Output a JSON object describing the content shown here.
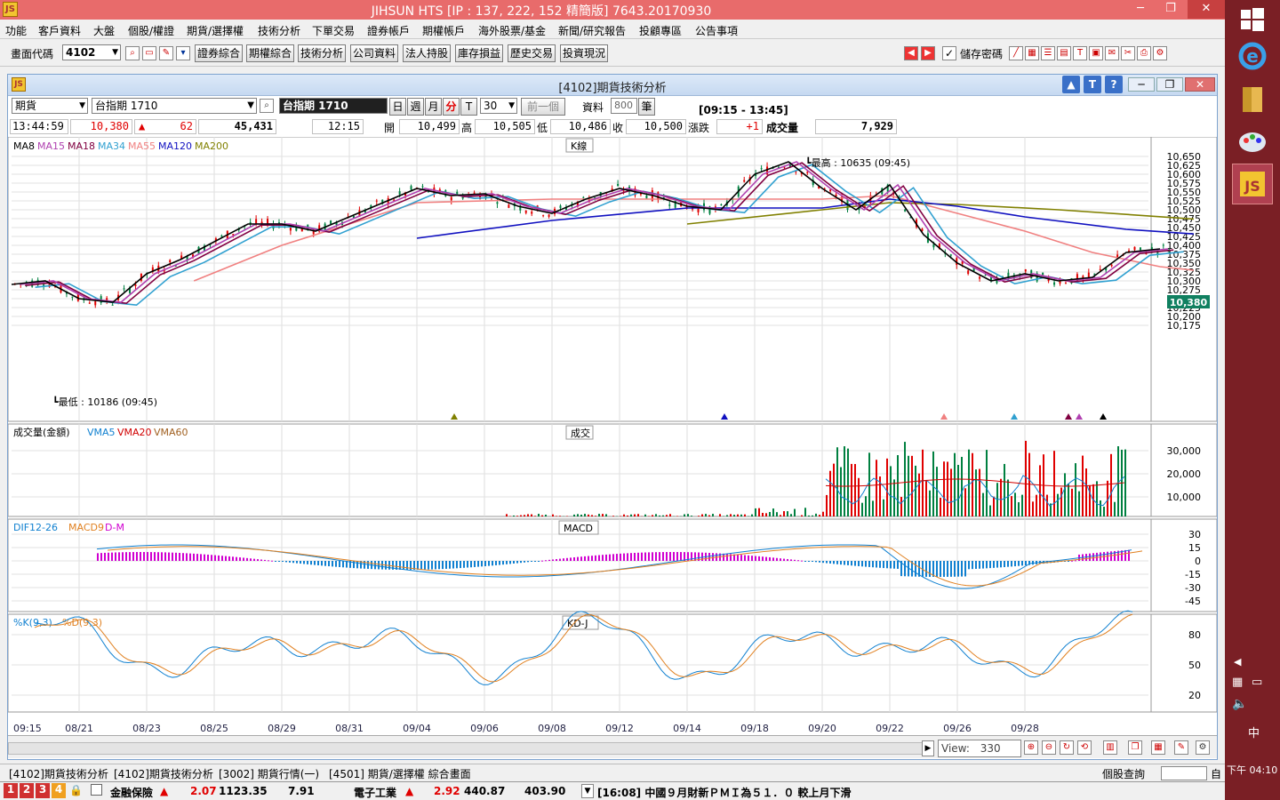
{
  "app": {
    "title": "JIHSUN HTS     [IP : 137, 222, 152 精簡版] 7643.20170930",
    "icon_text": "JS"
  },
  "window_controls": {
    "minimize": "─",
    "restore": "❐",
    "close": "✕"
  },
  "menu": [
    "功能",
    "客戶資料",
    "大盤",
    "個股/權證",
    "期貨/選擇權",
    "技術分析",
    "下單交易",
    "證券帳戶",
    "期權帳戶",
    "海外股票/基金",
    "新聞/研究報告",
    "投顧專區",
    "公告事項"
  ],
  "toolbar": {
    "code_label": "畫面代碼",
    "code_value": "4102",
    "buttons": [
      "證券綜合",
      "期權綜合",
      "技術分析",
      "公司資料",
      "法人持股",
      "庫存損益",
      "歷史交易",
      "投資現況"
    ],
    "save_password_label": "儲存密碼"
  },
  "chart_window": {
    "title": "[4102]期貨技術分析",
    "product_type": "期貨",
    "product_name": "台指期 1710",
    "product_display": "台指期 1710",
    "period_buttons": [
      "日",
      "週",
      "月",
      "分",
      "T"
    ],
    "interval_value": "30",
    "prev_button": "前一個",
    "data_label": "資料",
    "data_count": "800",
    "data_unit": "筆",
    "session": "[09:15 - 13:45]"
  },
  "quote": {
    "time": "13:44:59",
    "price": "10,380",
    "change": "62",
    "volume_total": "45,431",
    "bar_time": "12:15",
    "open_label": "開",
    "open": "10,499",
    "high_label": "高",
    "high": "10,505",
    "low_label": "低",
    "low": "10,486",
    "close_label": "收",
    "close": "10,500",
    "chg_label": "漲跌",
    "chg": "+1",
    "vol_label": "成交量",
    "vol": "7,929"
  },
  "panels": {
    "k": {
      "title": "K線",
      "legend": [
        {
          "name": "MA8",
          "color": "#000000"
        },
        {
          "name": "MA15",
          "color": "#b040b0"
        },
        {
          "name": "MA18",
          "color": "#800040"
        },
        {
          "name": "MA34",
          "color": "#30a0d0"
        },
        {
          "name": "MA55",
          "color": "#f08080"
        },
        {
          "name": "MA120",
          "color": "#1010c0"
        },
        {
          "name": "MA200",
          "color": "#808000"
        }
      ],
      "high_note": "最高 : 10635 (09:45)",
      "low_note": "最低 : 10186 (09:45)",
      "current_tag": "10,380"
    },
    "volume": {
      "title": "成交",
      "legend": [
        {
          "name": "成交量(金額)",
          "color": "#000000"
        },
        {
          "name": "VMA5",
          "color": "#1080d0"
        },
        {
          "name": "VMA20",
          "color": "#d00000"
        },
        {
          "name": "VMA60",
          "color": "#a06020"
        }
      ]
    },
    "macd": {
      "title": "MACD",
      "legend": [
        {
          "name": "DIF12-26",
          "color": "#1080d0"
        },
        {
          "name": "MACD9",
          "color": "#e08020"
        },
        {
          "name": "D-M",
          "color": "#d000d0"
        }
      ]
    },
    "kd": {
      "title": "KD-J",
      "legend": [
        {
          "name": "%K(9,3)",
          "color": "#1080d0"
        },
        {
          "name": "%D(9,3)",
          "color": "#e08020"
        }
      ]
    }
  },
  "chart_data": [
    {
      "type": "candlestick",
      "title": "K線",
      "y_ticks": [
        "10,650",
        "10,625",
        "10,600",
        "10,575",
        "10,550",
        "10,525",
        "10,500",
        "10,475",
        "10,450",
        "10,425",
        "10,400",
        "10,375",
        "10,350",
        "10,325",
        "10,300",
        "10,275",
        "10,250",
        "10,225",
        "10,200",
        "10,175"
      ],
      "ylim": [
        10162,
        10662
      ],
      "x_ticks": [
        "09:15",
        "08/21",
        "08/23",
        "08/25",
        "08/29",
        "08/31",
        "09/04",
        "09/06",
        "09/08",
        "09/12",
        "09/14",
        "09/18",
        "09/20",
        "09/22",
        "09/26",
        "09/28"
      ],
      "x_positions": [
        0,
        1,
        2,
        3,
        4,
        5,
        6,
        7,
        8,
        9,
        10,
        11,
        12,
        13,
        14,
        15
      ],
      "ma8_points": [
        [
          0,
          10290
        ],
        [
          0.5,
          10300
        ],
        [
          1,
          10250
        ],
        [
          1.5,
          10240
        ],
        [
          2,
          10320
        ],
        [
          2.5,
          10360
        ],
        [
          3,
          10410
        ],
        [
          3.5,
          10460
        ],
        [
          4,
          10460
        ],
        [
          4.5,
          10440
        ],
        [
          5,
          10480
        ],
        [
          5.5,
          10520
        ],
        [
          6,
          10560
        ],
        [
          6.5,
          10540
        ],
        [
          7,
          10545
        ],
        [
          7.5,
          10510
        ],
        [
          8,
          10490
        ],
        [
          8.5,
          10530
        ],
        [
          9,
          10560
        ],
        [
          9.5,
          10540
        ],
        [
          10,
          10510
        ],
        [
          10.5,
          10500
        ],
        [
          11,
          10600
        ],
        [
          11.5,
          10635
        ],
        [
          12,
          10560
        ],
        [
          12.5,
          10500
        ],
        [
          13,
          10570
        ],
        [
          13.5,
          10430
        ],
        [
          14,
          10350
        ],
        [
          14.5,
          10300
        ],
        [
          15,
          10320
        ],
        [
          15.5,
          10300
        ],
        [
          16,
          10310
        ],
        [
          16.5,
          10380
        ],
        [
          17,
          10390
        ]
      ],
      "ma120_points": [
        [
          6,
          10420
        ],
        [
          8,
          10470
        ],
        [
          10,
          10505
        ],
        [
          12,
          10505
        ],
        [
          13,
          10530
        ],
        [
          14,
          10510
        ],
        [
          15,
          10480
        ],
        [
          16.5,
          10445
        ],
        [
          17.5,
          10432
        ]
      ],
      "ma200_points": [
        [
          10,
          10460
        ],
        [
          12,
          10500
        ],
        [
          13,
          10520
        ],
        [
          14,
          10515
        ],
        [
          15.5,
          10500
        ],
        [
          17.5,
          10474
        ]
      ],
      "ma55_points": [
        [
          2.7,
          10300
        ],
        [
          4,
          10400
        ],
        [
          5.5,
          10490
        ],
        [
          6,
          10520
        ],
        [
          8,
          10530
        ],
        [
          10,
          10530
        ],
        [
          12,
          10530
        ],
        [
          13,
          10540
        ],
        [
          14,
          10490
        ],
        [
          15,
          10440
        ],
        [
          16,
          10380
        ],
        [
          17,
          10340
        ],
        [
          17.5,
          10330
        ]
      ]
    },
    {
      "type": "bar",
      "title": "成交",
      "y_ticks": [
        "30,000",
        "20,000",
        "10,000"
      ],
      "ylim": [
        0,
        35000
      ]
    },
    {
      "type": "bar",
      "title": "MACD",
      "y_ticks": [
        "30",
        "15",
        "0",
        "-15",
        "-30",
        "-45"
      ],
      "ylim": [
        -52,
        38
      ]
    },
    {
      "type": "line",
      "title": "KD-J",
      "y_ticks": [
        "80",
        "50",
        "20"
      ],
      "ylim": [
        0,
        100
      ]
    }
  ],
  "nav": {
    "view_label": "View:",
    "view_value": "330"
  },
  "tabs": [
    "[4102]期貨技術分析",
    "[4102]期貨技術分析",
    "[3002] 期貨行情(一)",
    "[4501] 期貨/選擇權 綜合畫面"
  ],
  "tabs_right": "個股查詢",
  "status": {
    "nums": [
      "1",
      "2",
      "3",
      "4"
    ],
    "item1_name": "金融保險",
    "item1_chg": "2.07",
    "item1_price": "1123.35",
    "item1_vol": "7.91",
    "item2_name": "電子工業",
    "item2_chg": "2.92",
    "item2_price": "440.87",
    "item2_vol": "403.90",
    "news": "[16:08] 中國９月財新ＰＭＩ為５１．０ 較上月下滑"
  },
  "clock": "下午 04:10",
  "ime": "中",
  "right_mini": "自",
  "colors": {
    "up": "#e00000",
    "down": "#008040",
    "titlebar": "#e86b6b",
    "taskbar": "#7a1f25"
  }
}
